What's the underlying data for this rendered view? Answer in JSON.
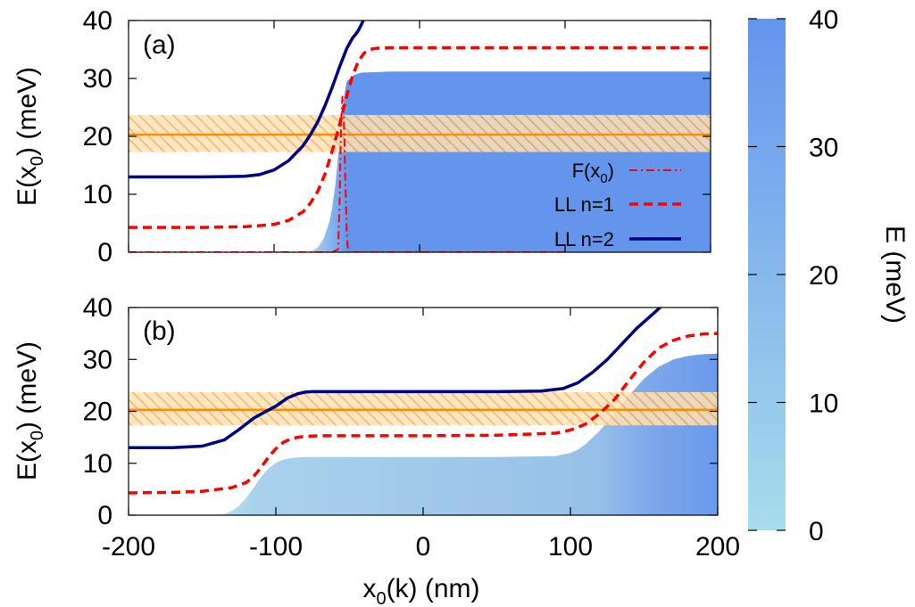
{
  "chart_data": [
    {
      "type": "line",
      "panel": "(a)",
      "ylabel_main": "E(x",
      "ylabel_sub": "0",
      "ylabel_tail": ") (meV)",
      "ylim": [
        0,
        40
      ],
      "yticks": [
        "0",
        "10",
        "20",
        "30",
        "40"
      ],
      "xlim": [
        -200,
        200
      ],
      "band": {
        "center": 20.3,
        "low": 17.3,
        "high": 23.7
      },
      "series": [
        {
          "name": "F(x0)",
          "label_main": "F(x",
          "label_sub": "0",
          "label_tail": ")",
          "style": "dash-dot",
          "color": "#ff0000",
          "x": [
            -200,
            -120,
            -60,
            -56,
            -55,
            -54,
            -53,
            -52,
            -51,
            -50,
            -49,
            -45,
            -40,
            -20,
            0,
            50,
            100
          ],
          "y": [
            0,
            0,
            0,
            0.5,
            8,
            22,
            27,
            23,
            12,
            3,
            0,
            0,
            0,
            0,
            0,
            0,
            0
          ]
        },
        {
          "name": "LL n=1",
          "label": "LL n=1",
          "style": "dashed",
          "color": "#ff0000",
          "x": [
            -200,
            -150,
            -120,
            -100,
            -90,
            -80,
            -75,
            -70,
            -65,
            -60,
            -55,
            -50,
            -46,
            -42,
            -38,
            -34,
            -30,
            -20,
            0,
            100,
            200
          ],
          "y": [
            4.3,
            4.3,
            4.4,
            4.8,
            5.5,
            7.0,
            8.5,
            10.5,
            13.5,
            17.5,
            22,
            27,
            30.5,
            33,
            34.4,
            35.0,
            35.2,
            35.3,
            35.3,
            35.3,
            35.3
          ]
        },
        {
          "name": "LL n=2",
          "label": "LL n=2",
          "style": "solid",
          "color": "#000080",
          "x": [
            -200,
            -150,
            -120,
            -110,
            -100,
            -90,
            -80,
            -75,
            -70,
            -65,
            -60,
            -55,
            -50,
            -46,
            -44,
            -42,
            -40,
            -38
          ],
          "y": [
            13,
            13,
            13.1,
            13.4,
            14.2,
            15.8,
            18.4,
            20.3,
            22.5,
            25.3,
            28.5,
            32,
            35.2,
            37.0,
            37.6,
            38.3,
            39.3,
            40.4
          ]
        }
      ],
      "fill_edge": {
        "x": [
          -200,
          -80,
          -75,
          -70,
          -66,
          -62,
          -60,
          -58,
          -56,
          -54,
          -52,
          -51,
          -50,
          -45,
          -40,
          -20,
          0,
          100,
          200
        ],
        "y": [
          0,
          0,
          0.1,
          0.8,
          2.3,
          5.2,
          7.8,
          11.5,
          16.5,
          22.0,
          26.5,
          28.3,
          29.5,
          30.6,
          31.0,
          31.2,
          31.2,
          31.2,
          31.2
        ]
      }
    },
    {
      "type": "line",
      "panel": "(b)",
      "xlabel_main": "x",
      "xlabel_sub": "0",
      "xlabel_tail": "(k) (nm)",
      "xticks": [
        "-200",
        "-100",
        "0",
        "100",
        "200"
      ],
      "xlim": [
        -200,
        200
      ],
      "ylim": [
        0,
        40
      ],
      "yticks": [
        "0",
        "10",
        "20",
        "30",
        "40"
      ],
      "band": {
        "center": 20.3,
        "low": 17.3,
        "high": 23.7
      },
      "series": [
        {
          "name": "LL n=1",
          "style": "dashed",
          "color": "#ff0000",
          "x": [
            -200,
            -170,
            -150,
            -130,
            -120,
            -115,
            -110,
            -105,
            -100,
            -95,
            -90,
            -85,
            -80,
            -70,
            -50,
            0,
            50,
            90,
            100,
            110,
            120,
            130,
            140,
            150,
            160,
            170,
            180,
            190,
            200
          ],
          "y": [
            4.3,
            4.4,
            4.6,
            5.3,
            6.3,
            7.5,
            9.2,
            11.2,
            12.8,
            14.0,
            14.7,
            15.0,
            15.2,
            15.3,
            15.3,
            15.3,
            15.4,
            15.8,
            16.4,
            17.5,
            19.6,
            22.3,
            26.0,
            29.5,
            32.2,
            33.7,
            34.5,
            34.9,
            35.0
          ]
        },
        {
          "name": "LL n=2",
          "style": "solid",
          "color": "#000080",
          "x": [
            -200,
            -170,
            -150,
            -135,
            -125,
            -115,
            -108,
            -100,
            -92,
            -85,
            -80,
            -75,
            -60,
            -40,
            0,
            50,
            80,
            95,
            105,
            115,
            125,
            135,
            145,
            155,
            162
          ],
          "y": [
            13,
            13,
            13.3,
            14.5,
            16.5,
            18.7,
            19.8,
            21.0,
            22.6,
            23.4,
            23.7,
            23.8,
            23.8,
            23.8,
            23.8,
            23.8,
            23.9,
            24.4,
            25.5,
            27.5,
            30.0,
            33.0,
            36.0,
            38.5,
            40.3
          ]
        }
      ],
      "fill_edge": {
        "x": [
          -200,
          -140,
          -135,
          -130,
          -125,
          -120,
          -115,
          -110,
          -105,
          -100,
          -95,
          -90,
          -85,
          -80,
          -70,
          -50,
          0,
          50,
          90,
          100,
          105,
          110,
          120,
          130,
          140,
          150,
          160,
          170,
          180,
          190,
          200
        ],
        "y": [
          0,
          0,
          0.2,
          0.8,
          1.8,
          3.4,
          5.3,
          7.4,
          9.0,
          10.1,
          10.7,
          11.0,
          11.1,
          11.2,
          11.2,
          11.2,
          11.2,
          11.2,
          11.4,
          12.0,
          12.6,
          13.6,
          16.3,
          19.6,
          23.1,
          26.3,
          28.6,
          30.0,
          30.7,
          31.0,
          31.1
        ]
      }
    },
    {
      "type": "colorbar",
      "label": "E (meV)",
      "range": [
        0,
        40
      ],
      "ticks": [
        "0",
        "10",
        "20",
        "30",
        "40"
      ],
      "color_low": "#a8dcec",
      "color_high": "#6495ed"
    }
  ]
}
